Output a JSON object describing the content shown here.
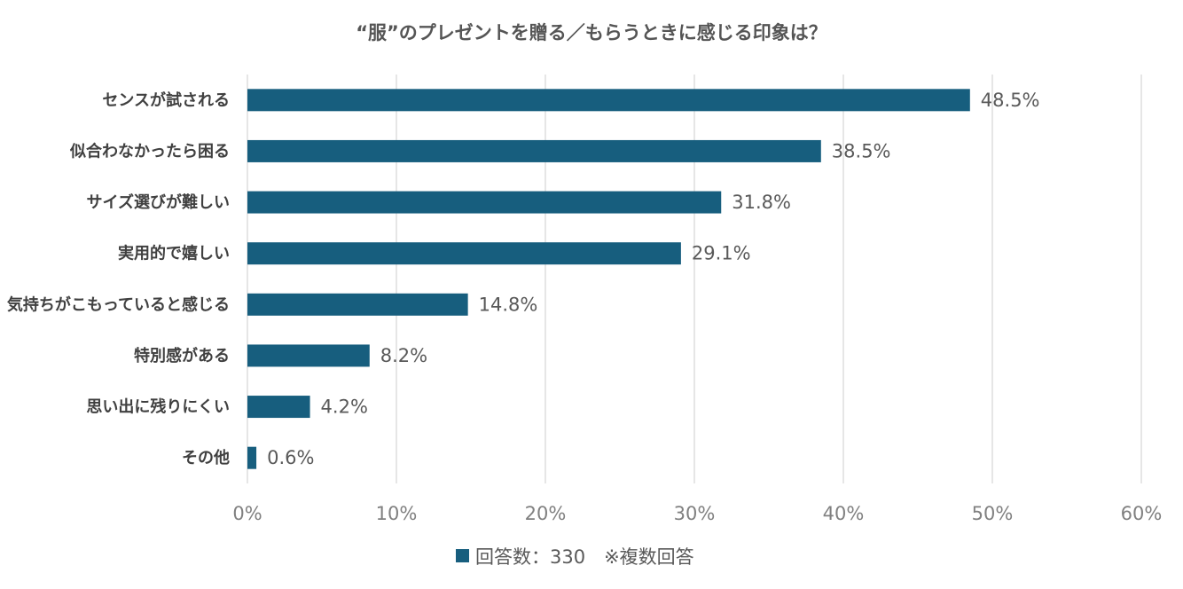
{
  "chart_data": {
    "type": "bar",
    "orientation": "horizontal",
    "title": "“服”のプレゼントを贈る／もらうときに感じる印象は？",
    "categories": [
      "センスが試される",
      "似合わなかったら困る",
      "サイズ選びが難しい",
      "実用的で嬉しい",
      "気持ちがこもっていると感じる",
      "特別感がある",
      "思い出に残りにくい",
      "その他"
    ],
    "series": [
      {
        "name": "回答数：330　※複数回答",
        "values": [
          48.5,
          38.5,
          31.8,
          29.1,
          14.8,
          8.2,
          4.2,
          0.6
        ]
      }
    ],
    "value_labels": [
      "48.5%",
      "38.5%",
      "31.8%",
      "29.1%",
      "14.8%",
      "8.2%",
      "4.2%",
      "0.6%"
    ],
    "x_ticks": [
      "0%",
      "10%",
      "20%",
      "30%",
      "40%",
      "50%",
      "60%"
    ],
    "xlim": [
      0,
      60
    ],
    "grid": true,
    "legend_position": "bottom",
    "colors": {
      "bar": "#175e7e",
      "grid": "#d9d9d9"
    }
  }
}
